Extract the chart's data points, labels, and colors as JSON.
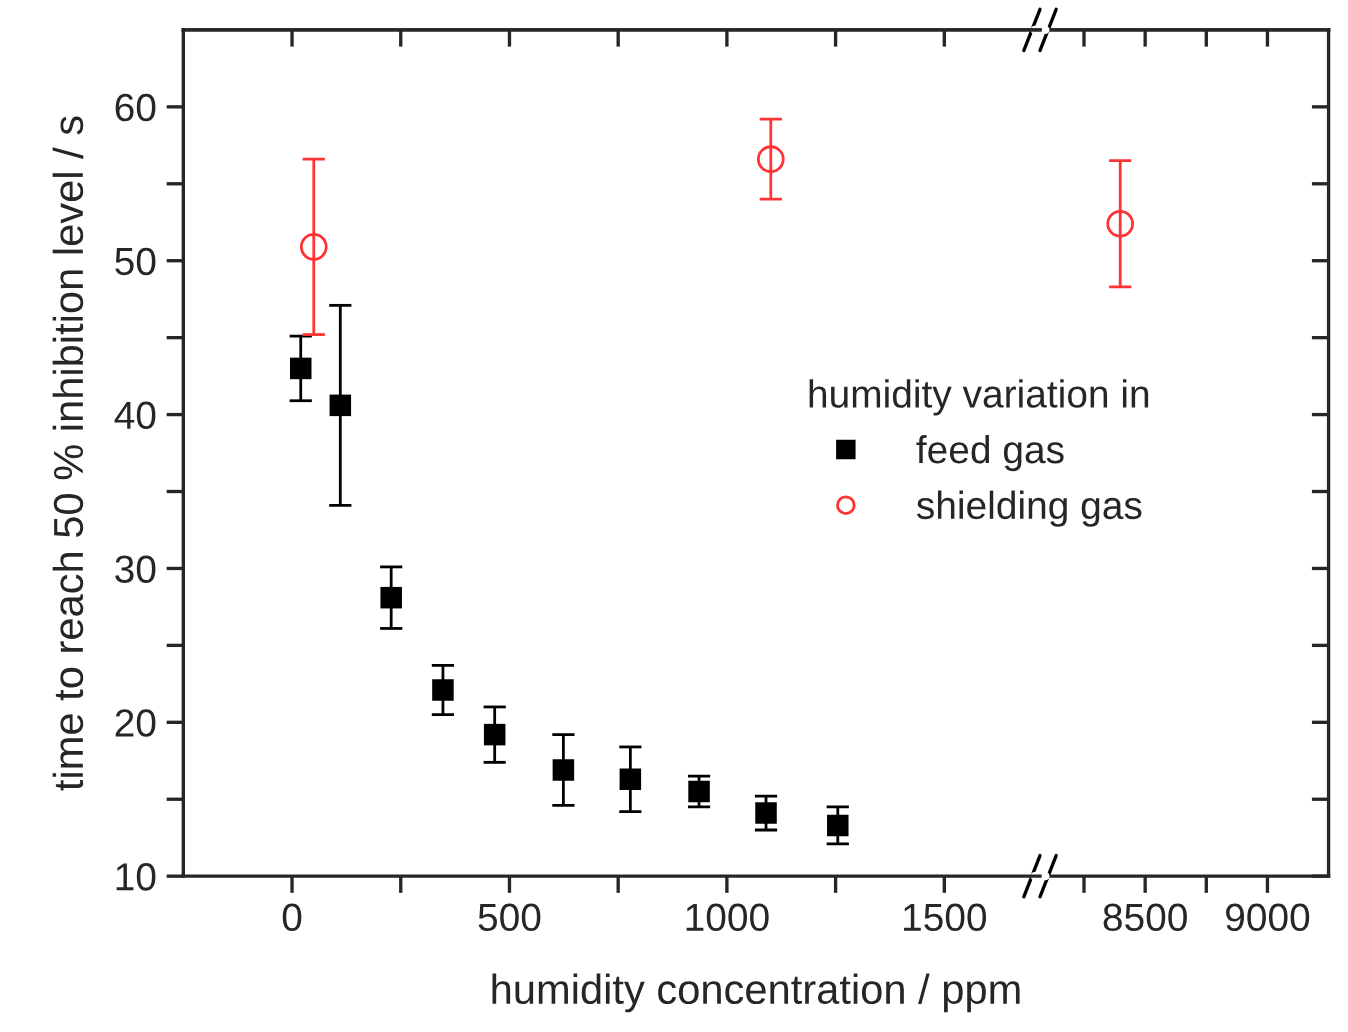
{
  "chart_data": [
    {
      "type": "scatter",
      "xlabel": "humidity concentration / ppm",
      "ylabel": "time to reach 50 % inhibition level / s",
      "legend_title": "humidity variation in",
      "legend": "center right",
      "xlim": [
        -250,
        1720
      ],
      "ylim": [
        10,
        65
      ],
      "xticks": [
        0,
        {
          "value": 250,
          "label": null
        },
        500,
        {
          "value": 750,
          "label": null
        },
        1000,
        {
          "value": 1250,
          "label": null
        },
        1500
      ],
      "yticks": [
        10,
        {
          "value": 15,
          "label": null
        },
        20,
        {
          "value": 25,
          "label": null
        },
        30,
        {
          "value": 35,
          "label": null
        },
        40,
        {
          "value": 45,
          "label": null
        },
        50,
        {
          "value": 55,
          "label": null
        },
        60
      ],
      "series": [
        {
          "name": "feed gas",
          "color": "#000000",
          "marker": "square",
          "x": [
            20,
            111,
            228,
            347,
            466,
            624,
            778,
            936,
            1090,
            1255
          ],
          "values": [
            43.0,
            40.6,
            28.1,
            22.1,
            19.2,
            16.9,
            16.3,
            15.5,
            14.1,
            13.3
          ],
          "errors": [
            2.1,
            6.5,
            2.0,
            1.6,
            1.8,
            2.3,
            2.1,
            1.0,
            1.1,
            1.2
          ]
        },
        {
          "name": "shielding gas",
          "color": "#ff3333",
          "marker": "circle",
          "x": [
            50,
            1101
          ],
          "values": [
            50.9,
            56.6
          ],
          "errors": [
            5.7,
            2.6
          ]
        }
      ]
    },
    {
      "type": "scatter",
      "tick_labels": "x",
      "xlim": [
        8070,
        9250
      ],
      "ylim": [
        10,
        65
      ],
      "xticks": [
        {
          "value": 8250,
          "label": null
        },
        8500,
        {
          "value": 8750,
          "label": null
        },
        9000
      ],
      "yticks": [
        10,
        {
          "value": 15,
          "label": null
        },
        20,
        {
          "value": 25,
          "label": null
        },
        30,
        {
          "value": 35,
          "label": null
        },
        40,
        {
          "value": 45,
          "label": null
        },
        50,
        {
          "value": 55,
          "label": null
        },
        60
      ],
      "series": [
        {
          "color": "#ff3333",
          "marker": "circle",
          "x": [
            8398
          ],
          "values": [
            52.4
          ],
          "errors": [
            4.1
          ]
        }
      ]
    }
  ]
}
